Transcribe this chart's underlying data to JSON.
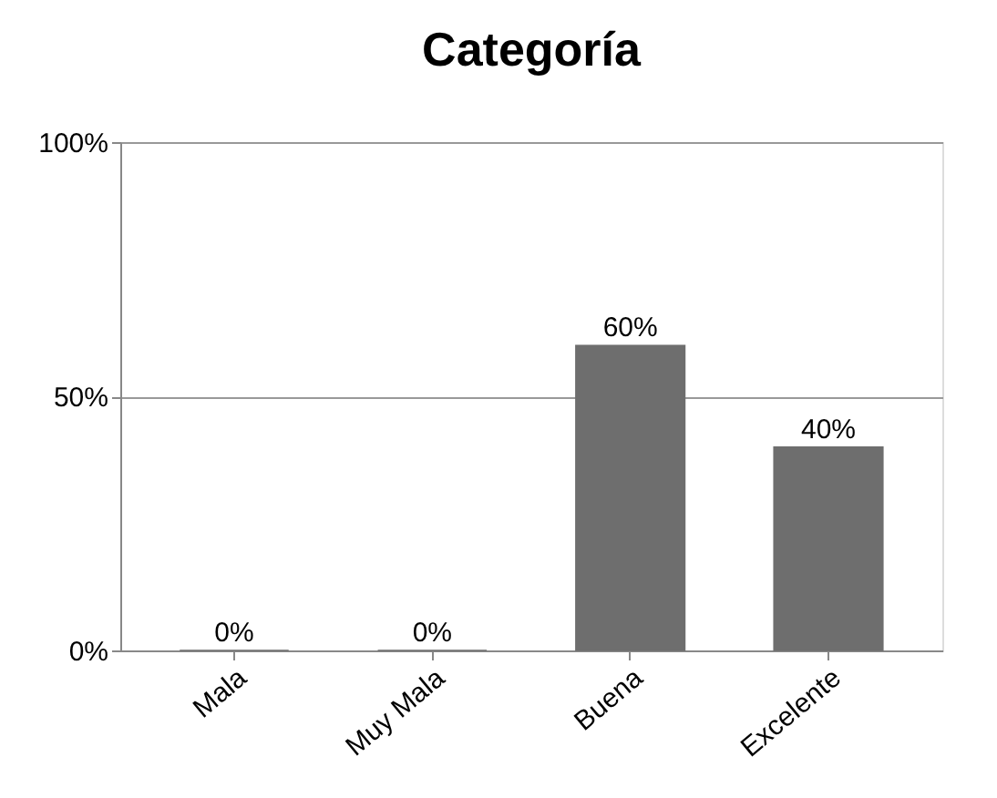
{
  "chart_data": {
    "type": "bar",
    "title": "Categoría",
    "categories": [
      "Mala",
      "Muy Mala",
      "Buena",
      "Excelente"
    ],
    "values": [
      0,
      0,
      60,
      40
    ],
    "value_labels": [
      "0%",
      "0%",
      "60%",
      "40%"
    ],
    "color": "#6e6e6e",
    "ylim": [
      0,
      100
    ],
    "yticks": [
      {
        "value": 0,
        "label": "0%"
      },
      {
        "value": 50,
        "label": "50%"
      },
      {
        "value": 100,
        "label": "100%"
      }
    ],
    "grid": "y"
  }
}
